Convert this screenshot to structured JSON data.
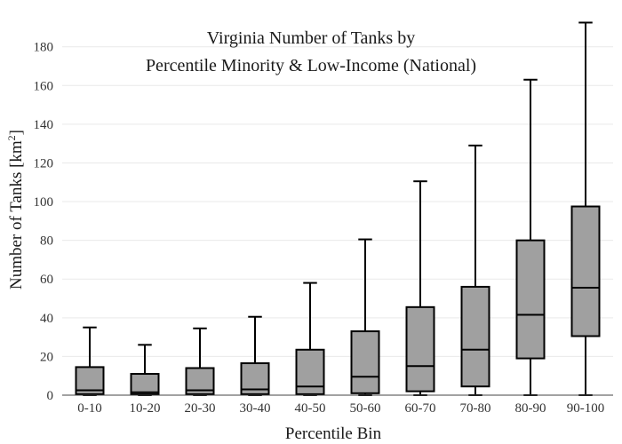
{
  "chart_data": {
    "type": "box",
    "title_lines": [
      "Virginia Number of Tanks by",
      "Percentile Minority & Low-Income (National)"
    ],
    "xlabel": "Percentile Bin",
    "ylabel": "Number of Tanks",
    "ylabel_unit_base": "km",
    "ylabel_unit_exp": "2",
    "ylim": [
      0,
      195
    ],
    "yticks": [
      0,
      20,
      40,
      60,
      80,
      100,
      120,
      140,
      160,
      180
    ],
    "grid": true,
    "colors": {
      "box_fill": "#a0a0a0",
      "line": "#000000",
      "grid": "#e9e9e9",
      "axis": "#444444"
    },
    "categories": [
      "0-10",
      "10-20",
      "20-30",
      "30-40",
      "40-50",
      "50-60",
      "60-70",
      "70-80",
      "80-90",
      "90-100"
    ],
    "boxes": [
      {
        "category": "0-10",
        "min": 0,
        "q1": 0.5,
        "median": 2.5,
        "q3": 14.5,
        "max": 35
      },
      {
        "category": "10-20",
        "min": 0,
        "q1": 0.5,
        "median": 1.5,
        "q3": 11,
        "max": 26
      },
      {
        "category": "20-30",
        "min": 0,
        "q1": 0.5,
        "median": 2.5,
        "q3": 14,
        "max": 34.5
      },
      {
        "category": "30-40",
        "min": 0,
        "q1": 0.5,
        "median": 3,
        "q3": 16.5,
        "max": 40.5
      },
      {
        "category": "40-50",
        "min": 0,
        "q1": 0.5,
        "median": 4.5,
        "q3": 23.5,
        "max": 58
      },
      {
        "category": "50-60",
        "min": 0,
        "q1": 1,
        "median": 9.5,
        "q3": 33,
        "max": 80.5
      },
      {
        "category": "60-70",
        "min": 0,
        "q1": 2,
        "median": 15,
        "q3": 45.5,
        "max": 110.5
      },
      {
        "category": "70-80",
        "min": 0,
        "q1": 4.5,
        "median": 23.5,
        "q3": 56,
        "max": 129
      },
      {
        "category": "80-90",
        "min": 0,
        "q1": 19,
        "median": 41.5,
        "q3": 80,
        "max": 163
      },
      {
        "category": "90-100",
        "min": 0,
        "q1": 30.5,
        "median": 55.5,
        "q3": 97.5,
        "max": 192.5
      }
    ]
  }
}
